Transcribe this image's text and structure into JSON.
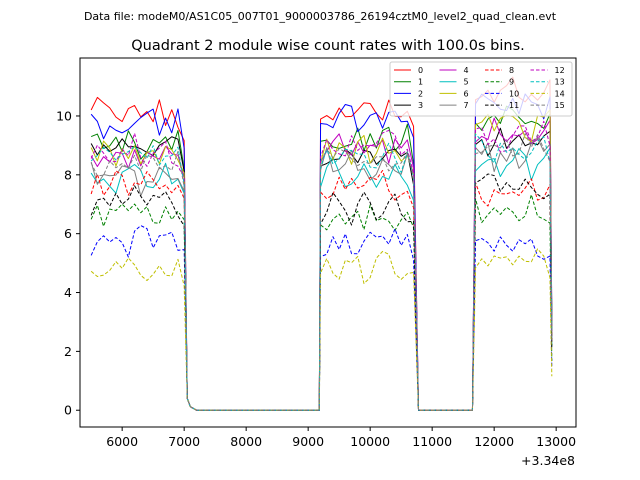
{
  "figure": {
    "suptitle": "Data file: modeM0/AS1C05_007T01_9000003786_26194cztM0_level2_quad_clean.evt",
    "title": "Quadrant 2 module wise count rates with 100.0s bins.",
    "offset_label": "+3.34e8"
  },
  "chart_data": {
    "type": "line",
    "title": "Quadrant 2 module wise count rates with 100.0s bins.",
    "xlabel": "",
    "ylabel": "",
    "x_offset": 334000000,
    "xlim": [
      5320,
      13320
    ],
    "ylim": [
      -0.57,
      11.97
    ],
    "xticks": [
      6000,
      7000,
      8000,
      9000,
      10000,
      11000,
      12000,
      13000
    ],
    "yticks": [
      0,
      2,
      4,
      6,
      8,
      10
    ],
    "grid": false,
    "legend": {
      "placement": "top-right",
      "columns": 4
    },
    "segments": [
      {
        "start": 5500,
        "end": 7000,
        "bins": 16
      },
      {
        "start": 9200,
        "end": 10700,
        "bins": 16
      },
      {
        "start": 11700,
        "end": 12900,
        "bins": 13
      }
    ],
    "series": [
      {
        "name": "0",
        "color": "#ff0000",
        "dash": "solid",
        "levels": [
          10.1,
          10.2,
          10.8
        ]
      },
      {
        "name": "1",
        "color": "#008000",
        "dash": "solid",
        "levels": [
          9.0,
          9.3,
          9.8
        ]
      },
      {
        "name": "2",
        "color": "#0000ff",
        "dash": "solid",
        "levels": [
          9.7,
          9.9,
          10.4
        ]
      },
      {
        "name": "3",
        "color": "#000000",
        "dash": "solid",
        "levels": [
          8.8,
          8.6,
          9.1
        ]
      },
      {
        "name": "4",
        "color": "#bf00bf",
        "dash": "solid",
        "levels": [
          8.5,
          8.9,
          9.3
        ]
      },
      {
        "name": "5",
        "color": "#00bfbf",
        "dash": "solid",
        "levels": [
          7.9,
          8.1,
          8.3
        ]
      },
      {
        "name": "6",
        "color": "#bfbf00",
        "dash": "solid",
        "levels": [
          8.6,
          8.8,
          9.7
        ]
      },
      {
        "name": "7",
        "color": "#808080",
        "dash": "solid",
        "levels": [
          7.9,
          8.4,
          8.7
        ]
      },
      {
        "name": "8",
        "color": "#ff0000",
        "dash": "dashed",
        "levels": [
          7.6,
          7.6,
          7.4
        ]
      },
      {
        "name": "9",
        "color": "#008000",
        "dash": "dashed",
        "levels": [
          6.8,
          6.6,
          6.9
        ]
      },
      {
        "name": "10",
        "color": "#0000ff",
        "dash": "dashed",
        "levels": [
          5.7,
          5.7,
          5.6
        ]
      },
      {
        "name": "11",
        "color": "#000000",
        "dash": "dashed",
        "levels": [
          7.1,
          6.9,
          7.6
        ]
      },
      {
        "name": "12",
        "color": "#bf00bf",
        "dash": "dashed",
        "levels": [
          8.9,
          9.1,
          9.3
        ]
      },
      {
        "name": "13",
        "color": "#00bfbf",
        "dash": "dashed",
        "levels": [
          8.6,
          8.6,
          8.9
        ]
      },
      {
        "name": "14",
        "color": "#bfbf00",
        "dash": "dashed",
        "levels": [
          4.7,
          4.9,
          5.1
        ]
      },
      {
        "name": "15",
        "color": "#808080",
        "dash": "dashed",
        "levels": [
          8.4,
          8.7,
          9.0
        ]
      }
    ]
  }
}
